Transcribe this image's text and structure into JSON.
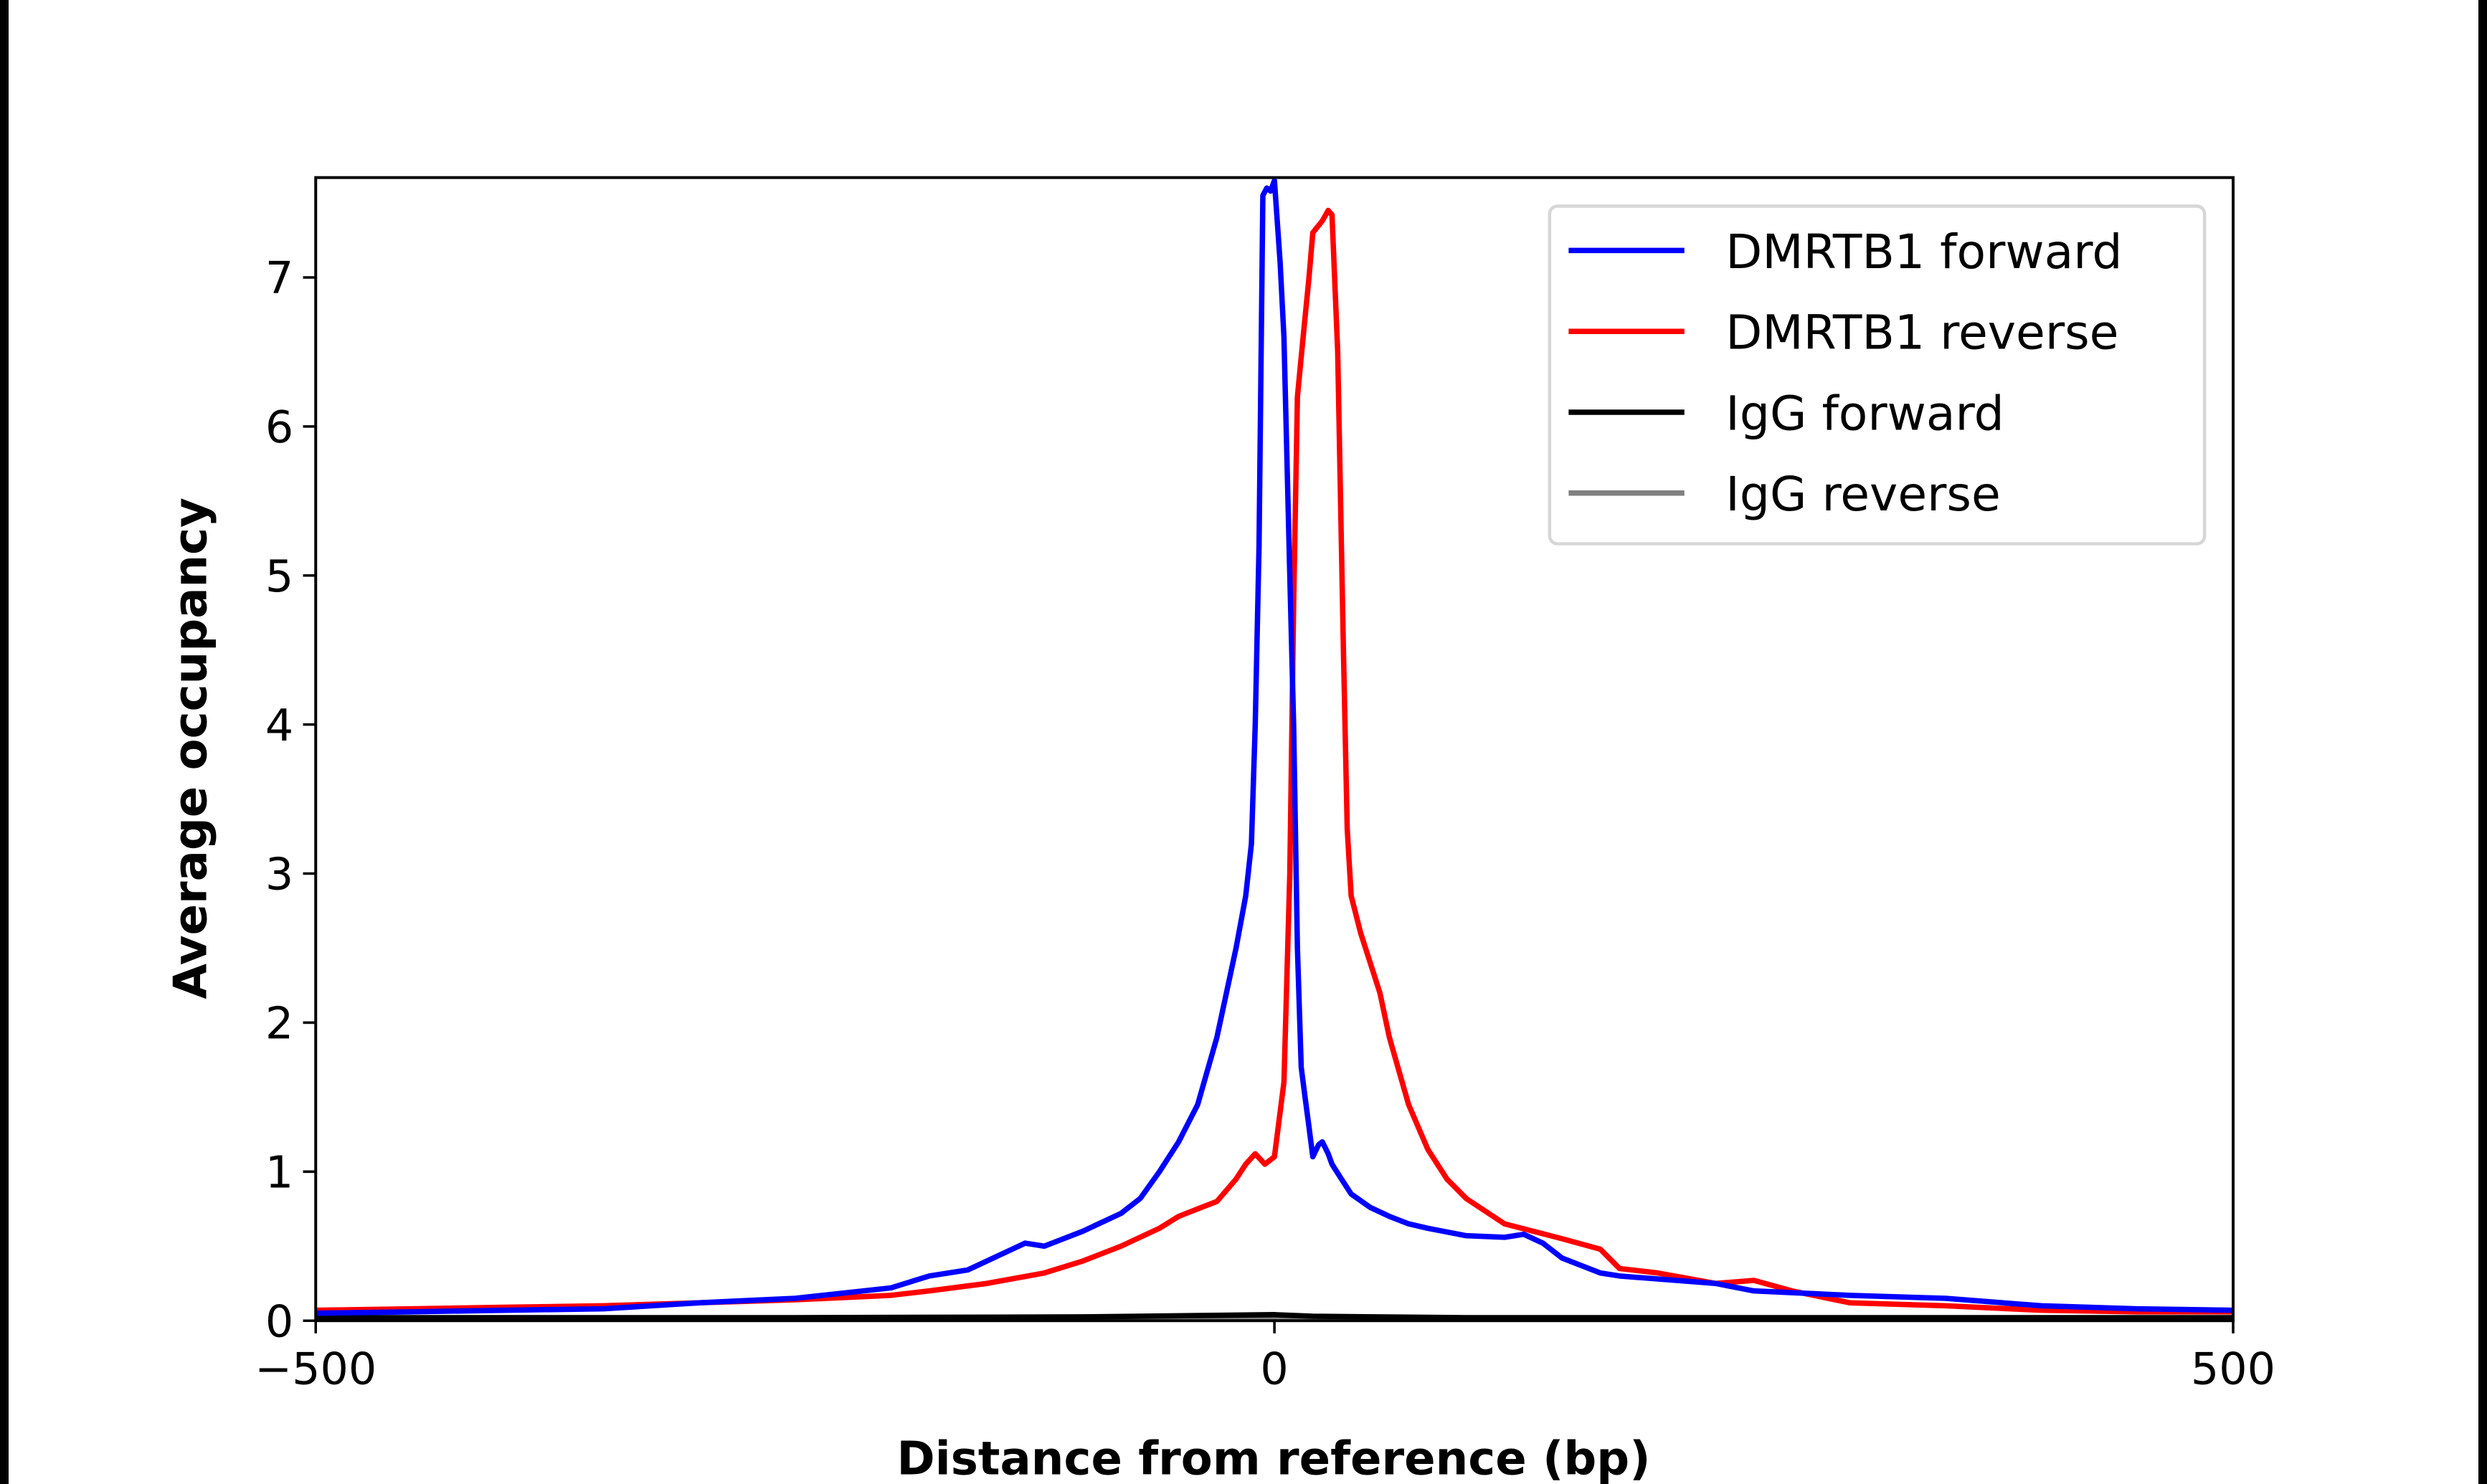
{
  "chart_data": {
    "type": "line",
    "title": "",
    "xlabel": "Distance from reference (bp)",
    "ylabel": "Average occupancy",
    "xlim": [
      -500,
      500
    ],
    "ylim": [
      0,
      7.67
    ],
    "xticks": [
      -500,
      0,
      500
    ],
    "xtick_labels": [
      "−500",
      "0",
      "500"
    ],
    "yticks": [
      0,
      1,
      2,
      3,
      4,
      5,
      6,
      7
    ],
    "ytick_labels": [
      "0",
      "1",
      "2",
      "3",
      "4",
      "5",
      "6",
      "7"
    ],
    "grid": false,
    "legend_position": "top-right",
    "series": [
      {
        "name": "DMRTB1 forward",
        "color": "#0000ff",
        "x": [
          -500,
          -450,
          -400,
          -350,
          -300,
          -250,
          -200,
          -180,
          -160,
          -150,
          -130,
          -120,
          -100,
          -80,
          -70,
          -60,
          -50,
          -40,
          -30,
          -20,
          -15,
          -12,
          -10,
          -8,
          -6,
          -4,
          -2,
          0,
          3,
          5,
          8,
          10,
          12,
          14,
          16,
          18,
          20,
          23,
          25,
          28,
          30,
          35,
          40,
          50,
          60,
          70,
          80,
          100,
          120,
          130,
          140,
          150,
          170,
          180,
          200,
          230,
          250,
          300,
          350,
          400,
          450,
          500
        ],
        "y": [
          0.05,
          0.06,
          0.07,
          0.08,
          0.12,
          0.15,
          0.22,
          0.3,
          0.34,
          0.4,
          0.52,
          0.5,
          0.6,
          0.72,
          0.82,
          1.0,
          1.2,
          1.45,
          1.9,
          2.5,
          2.85,
          3.2,
          4.0,
          5.2,
          7.55,
          7.6,
          7.58,
          7.65,
          7.1,
          6.6,
          5.0,
          4.0,
          2.5,
          1.7,
          1.5,
          1.3,
          1.1,
          1.18,
          1.2,
          1.12,
          1.05,
          0.95,
          0.85,
          0.76,
          0.7,
          0.65,
          0.62,
          0.57,
          0.56,
          0.58,
          0.52,
          0.42,
          0.32,
          0.3,
          0.28,
          0.25,
          0.2,
          0.17,
          0.15,
          0.1,
          0.08,
          0.07
        ]
      },
      {
        "name": "DMRTB1 reverse",
        "color": "#ff0000",
        "x": [
          -500,
          -450,
          -400,
          -350,
          -300,
          -250,
          -200,
          -180,
          -150,
          -120,
          -100,
          -80,
          -60,
          -50,
          -40,
          -30,
          -20,
          -15,
          -10,
          -5,
          0,
          3,
          5,
          8,
          10,
          12,
          15,
          18,
          20,
          25,
          28,
          30,
          33,
          36,
          38,
          40,
          45,
          55,
          60,
          70,
          80,
          90,
          100,
          120,
          150,
          170,
          180,
          200,
          230,
          250,
          270,
          300,
          350,
          400,
          450,
          500
        ],
        "y": [
          0.07,
          0.08,
          0.09,
          0.1,
          0.12,
          0.14,
          0.17,
          0.2,
          0.25,
          0.32,
          0.4,
          0.5,
          0.62,
          0.7,
          0.75,
          0.8,
          0.95,
          1.05,
          1.12,
          1.05,
          1.1,
          1.4,
          1.6,
          3.0,
          4.8,
          6.2,
          6.6,
          7.0,
          7.3,
          7.38,
          7.45,
          7.42,
          6.5,
          4.5,
          3.3,
          2.85,
          2.6,
          2.2,
          1.9,
          1.45,
          1.15,
          0.95,
          0.82,
          0.65,
          0.55,
          0.48,
          0.35,
          0.32,
          0.25,
          0.27,
          0.2,
          0.12,
          0.1,
          0.07,
          0.06,
          0.06
        ]
      },
      {
        "name": "IgG forward",
        "color": "#000000",
        "x": [
          -500,
          -250,
          -100,
          0,
          20,
          100,
          250,
          500
        ],
        "y": [
          0.02,
          0.02,
          0.025,
          0.04,
          0.03,
          0.02,
          0.02,
          0.02
        ]
      },
      {
        "name": "IgG reverse",
        "color": "#808080",
        "x": [
          -500,
          -250,
          0,
          250,
          500
        ],
        "y": [
          0.01,
          0.01,
          0.015,
          0.01,
          0.01
        ]
      }
    ]
  }
}
